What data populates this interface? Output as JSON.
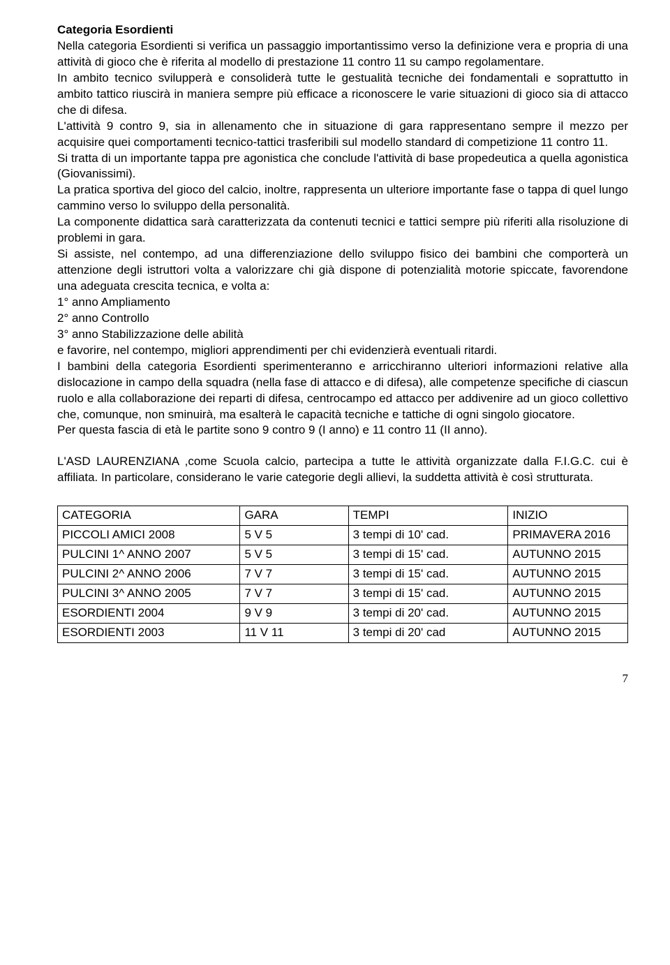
{
  "title": "Categoria Esordienti",
  "p1": "Nella categoria Esordienti si verifica un passaggio importantissimo verso la definizione vera e propria di una attività di gioco che è riferita al modello di prestazione 11 contro 11 su campo regolamentare.",
  "p2": "In ambito tecnico svilupperà e consoliderà tutte le gestualità tecniche dei fondamentali e soprattutto in  ambito tattico riuscirà in maniera sempre più efficace a riconoscere le varie situazioni di gioco sia di attacco che di difesa.",
  "p3": "L'attività 9 contro 9, sia in allenamento che in situazione di gara rappresentano sempre il mezzo per acquisire quei comportamenti tecnico-tattici trasferibili sul modello standard di competizione 11 contro 11.",
  "p4": "Si tratta di un importante tappa pre agonistica che conclude l'attività di base propedeutica a quella agonistica (Giovanissimi).",
  "p5": "La  pratica sportiva del gioco del calcio, inoltre, rappresenta un ulteriore importante fase o tappa di quel lungo cammino verso lo sviluppo della personalità.",
  "p6": "La componente didattica sarà caratterizzata da contenuti tecnici e tattici sempre più riferiti alla risoluzione di problemi in gara.",
  "p7": "Si assiste, nel contempo, ad una differenziazione dello sviluppo fisico dei bambini che comporterà un attenzione degli istruttori volta a valorizzare chi già dispone di potenzialità motorie spiccate, favorendone una adeguata crescita tecnica, e volta a:",
  "l1": "1° anno Ampliamento",
  "l2": "2° anno Controllo",
  "l3": "3° anno Stabilizzazione delle abilità",
  "p8": "e favorire, nel contempo, migliori apprendimenti per chi evidenzierà eventuali ritardi.",
  "p9": "I bambini della categoria Esordienti sperimenteranno e arricchiranno ulteriori informazioni relative alla dislocazione in campo della squadra (nella fase di attacco e di difesa), alle competenze specifiche di ciascun ruolo e alla collaborazione dei reparti di difesa, centrocampo ed attacco per addivenire ad un gioco collettivo che, comunque, non sminuirà, ma esalterà le capacità tecniche e tattiche di ogni singolo giocatore.",
  "p10": "Per questa fascia di età le partite sono 9 contro 9  (I anno) e 11 contro 11 (II anno).",
  "p11": "L'ASD LAURENZIANA ,come Scuola calcio, partecipa a tutte le attività organizzate dalla F.I.G.C. cui è affiliata. In particolare, considerano le varie categorie degli allievi, la suddetta attività è così strutturata.",
  "table": {
    "widths": [
      "32%",
      "19%",
      "28%",
      "21%"
    ],
    "header": [
      "CATEGORIA",
      "GARA",
      "TEMPI",
      "INIZIO"
    ],
    "rows": [
      [
        "PICCOLI AMICI 2008",
        "5 V 5",
        "3 tempi di 10' cad.",
        "PRIMAVERA 2016"
      ],
      [
        "PULCINI 1^ ANNO 2007",
        "5 V 5",
        "3 tempi di 15' cad.",
        "AUTUNNO 2015"
      ],
      [
        "PULCINI 2^ ANNO 2006",
        "7 V 7",
        "3 tempi di 15' cad.",
        "AUTUNNO 2015"
      ],
      [
        "PULCINI 3^ ANNO 2005",
        "7 V 7",
        "3 tempi di 15' cad.",
        "AUTUNNO 2015"
      ],
      [
        "ESORDIENTI 2004",
        "9 V 9",
        "3 tempi di 20' cad.",
        "AUTUNNO 2015"
      ],
      [
        "ESORDIENTI 2003",
        "11 V 11",
        "3 tempi di 20' cad",
        "AUTUNNO 2015"
      ]
    ]
  },
  "pageNumber": "7"
}
